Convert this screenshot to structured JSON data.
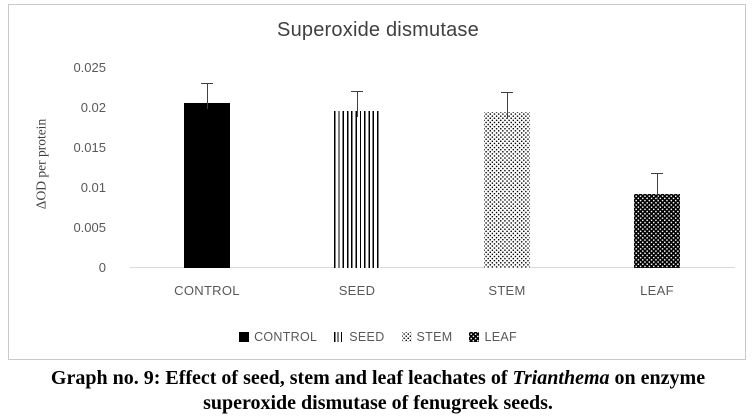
{
  "chart": {
    "title": "Superoxide dismutase",
    "y_axis_title": "ΔOD per protein"
  },
  "chart_data": {
    "type": "bar",
    "title": "Superoxide dismutase",
    "xlabel": "",
    "ylabel": "ΔOD per protein",
    "categories": [
      "CONTROL",
      "SEED",
      "STEM",
      "LEAF"
    ],
    "values": [
      0.0206,
      0.0196,
      0.0195,
      0.0093
    ],
    "error_plus": [
      0.0025,
      0.0025,
      0.0025,
      0.0026
    ],
    "ylim": [
      0,
      0.025
    ],
    "yticks": [
      0,
      0.005,
      0.01,
      0.015,
      0.02,
      0.025
    ],
    "ytick_labels": [
      "0",
      "0.005",
      "0.01",
      "0.015",
      "0.02",
      "0.025"
    ],
    "grid": false,
    "legend_position": "bottom",
    "series_patterns": [
      {
        "name": "CONTROL",
        "pattern": "solid-black"
      },
      {
        "name": "SEED",
        "pattern": "vertical-stripes"
      },
      {
        "name": "STEM",
        "pattern": "light-dots"
      },
      {
        "name": "LEAF",
        "pattern": "dark-dots"
      }
    ]
  },
  "legend": {
    "items": [
      {
        "label": "CONTROL",
        "pattern": "solid-black"
      },
      {
        "label": "SEED",
        "pattern": "vertical-stripes"
      },
      {
        "label": "STEM",
        "pattern": "light-dots"
      },
      {
        "label": "LEAF",
        "pattern": "dark-dots"
      }
    ]
  },
  "caption": {
    "line1_prefix": "Graph no. 9: Effect of seed, stem and leaf leachates of ",
    "line1_italic": "Trianthema",
    "line1_suffix": " on enzyme",
    "line2": "superoxide dismutase of fenugreek seeds."
  },
  "colors": {
    "title_text": "#404040",
    "axis_text": "#595959",
    "axis_line": "#d9d9d9",
    "frame_border": "#c9c9c9",
    "bar_black": "#000000",
    "error_bar": "#404040",
    "caption_text": "#000000"
  }
}
